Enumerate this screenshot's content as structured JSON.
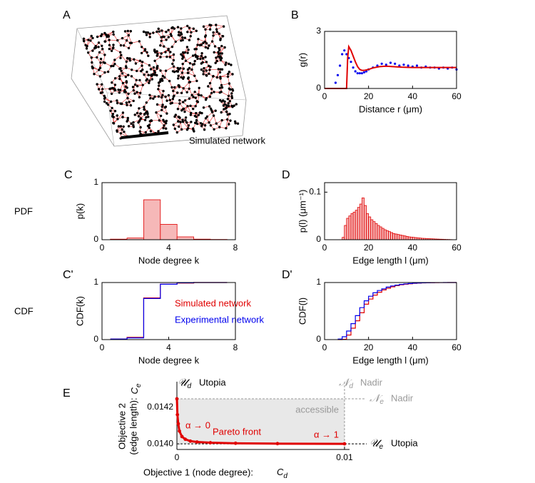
{
  "panel_A": {
    "label": "A",
    "caption": "Simulated network"
  },
  "row_labels": [
    "PDF",
    "CDF"
  ],
  "chart_data": [
    {
      "label": "B",
      "type": "line",
      "xlabel": "Distance  r (μm)",
      "ylabel": "g(r)",
      "xlim": [
        0,
        60
      ],
      "ylim": [
        0,
        3
      ],
      "xticks": [
        0,
        20,
        40,
        60
      ],
      "yticks": [
        0,
        3
      ],
      "series": [
        {
          "color": "#0000ee",
          "marker": "dot",
          "x": [
            5,
            6,
            7,
            8,
            9,
            10,
            11,
            12,
            13,
            14,
            15,
            16,
            17,
            18,
            19,
            20,
            22,
            24,
            26,
            28,
            30,
            32,
            34,
            36,
            38,
            40,
            42,
            44,
            46,
            48,
            50,
            52,
            54,
            56,
            58,
            60
          ],
          "values": [
            0.3,
            0.7,
            1.2,
            1.8,
            2.0,
            1.8,
            1.6,
            1.4,
            1.1,
            0.9,
            0.8,
            0.8,
            0.8,
            0.85,
            0.9,
            1.0,
            1.1,
            1.2,
            1.3,
            1.25,
            1.35,
            1.3,
            1.2,
            1.25,
            1.2,
            1.15,
            1.2,
            1.1,
            1.15,
            1.1,
            1.1,
            1.05,
            1.1,
            1.05,
            1.1,
            1.0
          ]
        },
        {
          "color": "#e00000",
          "x": [
            0,
            10,
            10.5,
            11,
            12,
            13,
            14,
            15,
            16,
            17,
            18,
            20,
            22,
            25,
            28,
            31,
            35,
            40,
            45,
            50,
            55,
            60
          ],
          "values": [
            0,
            0,
            1.6,
            2.2,
            2.0,
            1.7,
            1.4,
            1.15,
            1.0,
            0.95,
            0.95,
            1.0,
            1.08,
            1.15,
            1.17,
            1.15,
            1.12,
            1.1,
            1.1,
            1.1,
            1.1,
            1.1
          ]
        }
      ]
    },
    {
      "label": "C",
      "type": "histogram",
      "xlabel": "Node degree  k",
      "ylabel": "p(k)",
      "xlim": [
        0,
        8
      ],
      "ylim": [
        0,
        1
      ],
      "xticks": [
        0,
        4,
        8
      ],
      "yticks": [
        0,
        1
      ],
      "color": "#e00000",
      "fill": "#f6b8b8",
      "bins": [
        0.5,
        1.5,
        2.5,
        3.5,
        4.5,
        5.5,
        6.5,
        7.5
      ],
      "values": [
        0.01,
        0.03,
        0.7,
        0.27,
        0.05,
        0.01,
        0.005
      ]
    },
    {
      "label": "D",
      "type": "histogram",
      "xlabel": "Edge length  l (μm)",
      "ylabel": "p(l) (μm⁻¹)",
      "xlim": [
        0,
        60
      ],
      "ylim": [
        0,
        0.12
      ],
      "xticks": [
        0,
        20,
        40,
        60
      ],
      "yticks": [
        0,
        0.1
      ],
      "color": "#e00000",
      "fill": "#f6b8b8",
      "bins": [
        8,
        9,
        10,
        11,
        12,
        13,
        14,
        15,
        16,
        17,
        18,
        19,
        20,
        21,
        22,
        23,
        24,
        25,
        26,
        27,
        28,
        29,
        30,
        31,
        32,
        33,
        34,
        35,
        36,
        37,
        38,
        39,
        40,
        41,
        42,
        43,
        44,
        45,
        46,
        47,
        48,
        49,
        50,
        51,
        52,
        53,
        54,
        55,
        56,
        57,
        58
      ],
      "values": [
        0.005,
        0.03,
        0.045,
        0.05,
        0.055,
        0.058,
        0.062,
        0.068,
        0.075,
        0.088,
        0.072,
        0.055,
        0.048,
        0.042,
        0.038,
        0.034,
        0.03,
        0.027,
        0.024,
        0.021,
        0.019,
        0.017,
        0.015,
        0.013,
        0.012,
        0.011,
        0.01,
        0.009,
        0.008,
        0.007,
        0.006,
        0.0055,
        0.005,
        0.0045,
        0.004,
        0.0035,
        0.003,
        0.0028,
        0.0025,
        0.0022,
        0.002,
        0.0018,
        0.0015,
        0.0013,
        0.0011,
        0.001,
        0.0008,
        0.0006,
        0.0005,
        0.0003
      ]
    },
    {
      "label": "C'",
      "type": "step",
      "xlabel": "Node degree  k",
      "ylabel": "CDF(k)",
      "xlim": [
        0,
        8
      ],
      "ylim": [
        0,
        1
      ],
      "xticks": [
        0,
        4,
        8
      ],
      "yticks": [
        0,
        1
      ],
      "x": [
        0.5,
        1.5,
        2.5,
        3.5,
        4.5,
        5.5,
        6.5,
        7.5
      ],
      "series": [
        {
          "name": "Simulated network",
          "color": "#e00000",
          "values": [
            0.01,
            0.04,
            0.73,
            0.97,
            0.99,
            1.0,
            1.0,
            1.0
          ]
        },
        {
          "name": "Experimental network",
          "color": "#0000ee",
          "values": [
            0.01,
            0.03,
            0.72,
            0.97,
            0.995,
            1.0,
            1.0,
            1.0
          ]
        }
      ]
    },
    {
      "label": "D'",
      "type": "step",
      "xlabel": "Edge length  l (μm)",
      "ylabel": "CDF(l)",
      "xlim": [
        0,
        60
      ],
      "ylim": [
        0,
        1
      ],
      "xticks": [
        0,
        20,
        40,
        60
      ],
      "yticks": [
        0,
        1
      ],
      "x": [
        6,
        8,
        10,
        12,
        14,
        16,
        18,
        20,
        22,
        24,
        26,
        28,
        30,
        32,
        34,
        36,
        38,
        40,
        42,
        44,
        46,
        48,
        50,
        52,
        54,
        56,
        58,
        60
      ],
      "series": [
        {
          "color": "#e00000",
          "values": [
            0,
            0.005,
            0.08,
            0.2,
            0.33,
            0.47,
            0.62,
            0.71,
            0.78,
            0.83,
            0.87,
            0.9,
            0.925,
            0.945,
            0.96,
            0.97,
            0.978,
            0.985,
            0.99,
            0.993,
            0.995,
            0.997,
            0.998,
            0.999,
            0.999,
            1,
            1,
            1
          ]
        },
        {
          "color": "#0000ee",
          "values": [
            0.01,
            0.05,
            0.15,
            0.28,
            0.42,
            0.56,
            0.68,
            0.76,
            0.82,
            0.86,
            0.89,
            0.92,
            0.94,
            0.955,
            0.967,
            0.976,
            0.983,
            0.988,
            0.992,
            0.995,
            0.997,
            0.998,
            0.999,
            0.999,
            1,
            1,
            1,
            1
          ]
        }
      ]
    },
    {
      "label": "E",
      "type": "pareto",
      "xlabel": "Objective 1 (node degree):",
      "xsymbol": "C",
      "xsub": "d",
      "ylabel": [
        "Objective 2",
        "(edge length):"
      ],
      "ysymbol": "C",
      "ysub": "e",
      "xlim": [
        0,
        0.0103
      ],
      "ylim": [
        0.013969,
        0.014341
      ],
      "xticks": [
        0,
        0.01
      ],
      "yticks": [
        {
          "value": 0.014,
          "label": "0.0140"
        },
        {
          "value": 0.0142,
          "label": "0.0142"
        }
      ],
      "color": "#e00000",
      "shade": "#e8e8e8",
      "x": [
        0,
        3e-05,
        8e-05,
        0.00015,
        0.0003,
        0.0005,
        0.0008,
        0.0012,
        0.002,
        0.0035,
        0.006,
        0.01
      ],
      "values": [
        0.014247,
        0.01416,
        0.01411,
        0.01407,
        0.01404,
        0.014025,
        0.014015,
        0.01401,
        0.014006,
        0.014003,
        0.014001,
        0.014
      ],
      "reference_points": [
        {
          "symbol": "𝒰",
          "sub": "d",
          "label": "Utopia",
          "axis": "x",
          "value": 0
        },
        {
          "symbol": "𝒩",
          "sub": "d",
          "label": "Nadir",
          "axis": "x",
          "value": 0.01
        },
        {
          "symbol": "𝒩",
          "sub": "e",
          "label": "Nadir",
          "axis": "y",
          "value": 0.014247
        },
        {
          "symbol": "𝒰",
          "sub": "e",
          "label": "Utopia",
          "axis": "y",
          "value": 0.014
        }
      ],
      "annotations": [
        "accessible",
        "α → 0",
        "Pareto front",
        "α → 1"
      ]
    }
  ]
}
